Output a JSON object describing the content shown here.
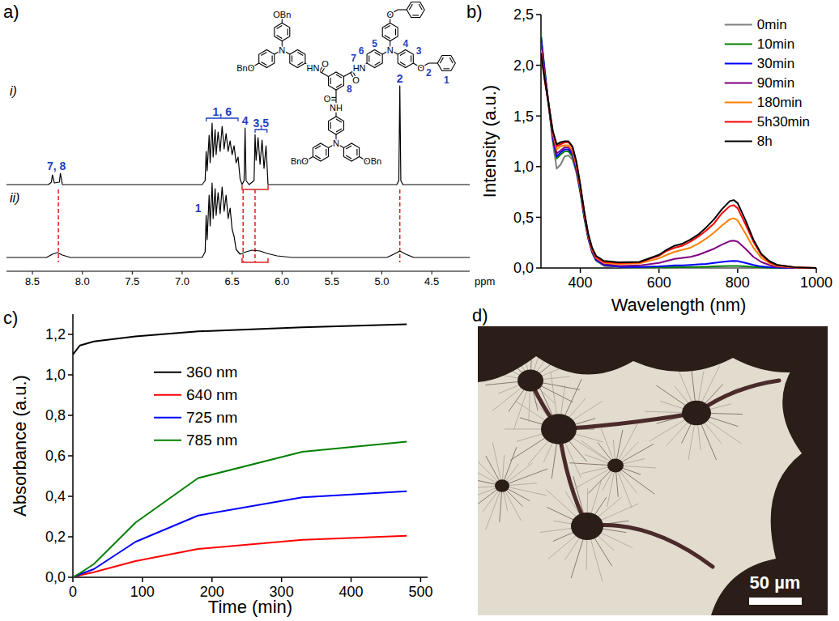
{
  "chart_data": [
    {
      "panel": "a)",
      "type": "spectrum",
      "x_label": "ppm",
      "xlim": [
        8.76,
        4.12
      ],
      "xticks": [
        8.5,
        {
          "value": 8,
          "label": "8.0"
        },
        7.5,
        {
          "value": 7,
          "label": "7.0"
        },
        6.5,
        {
          "value": 6,
          "label": "6.0"
        },
        5.5,
        {
          "value": 5,
          "label": "5.0"
        },
        4.5
      ],
      "ylim": [
        0,
        130
      ],
      "tick_labels": "x",
      "series": [
        {
          "name": "i)",
          "color": "#000000",
          "x": [
            8.76,
            8.34,
            8.31,
            8.3,
            8.28,
            8.23,
            8.22,
            8.2,
            6.8,
            6.77,
            6.76,
            6.75,
            6.73,
            6.72,
            6.7,
            6.69,
            6.67,
            6.66,
            6.64,
            6.62,
            6.6,
            6.58,
            6.56,
            6.54,
            6.52,
            6.5,
            6.48,
            6.46,
            6.44,
            6.42,
            6.4,
            6.38,
            6.37,
            6.36,
            6.33,
            6.28,
            6.27,
            6.26,
            6.24,
            6.22,
            6.2,
            6.18,
            6.16,
            6.14,
            4.85,
            4.83,
            4.82,
            4.81,
            4.79,
            4.12
          ],
          "values": [
            0,
            0,
            3,
            12,
            2,
            3,
            14,
            0,
            0,
            5,
            41,
            17,
            61,
            27,
            76,
            34,
            68,
            37,
            65,
            41,
            72,
            44,
            63,
            41,
            54,
            37,
            48,
            27,
            34,
            7,
            0,
            5,
            70,
            5,
            0,
            5,
            62,
            30,
            58,
            25,
            55,
            20,
            48,
            0,
            0,
            5,
            122,
            5,
            0,
            0
          ],
          "peak_labels": [
            {
              "text": "7, 8",
              "x": 8.26
            },
            {
              "text": "1, 6",
              "span": [
                6.76,
                6.44
              ]
            },
            {
              "text": "4",
              "x": 6.37
            },
            {
              "text": "3,5",
              "span": [
                6.27,
                6.15
              ]
            },
            {
              "text": "2",
              "x": 4.82
            }
          ]
        },
        {
          "name": "ii)",
          "color": "#000000",
          "x": [
            8.76,
            8.36,
            8.3,
            8.25,
            8.2,
            8.12,
            6.8,
            6.77,
            6.76,
            6.75,
            6.73,
            6.72,
            6.7,
            6.69,
            6.67,
            6.66,
            6.64,
            6.62,
            6.6,
            6.58,
            6.56,
            6.54,
            6.52,
            6.5,
            6.48,
            6.46,
            6.42,
            6.36,
            6.3,
            6.22,
            6.15,
            6.05,
            5.9,
            4.95,
            4.88,
            4.82,
            4.76,
            4.68,
            4.12
          ],
          "values": [
            0,
            0,
            4,
            6,
            3,
            0,
            0,
            7,
            52,
            22,
            77,
            39,
            92,
            48,
            85,
            52,
            80,
            54,
            87,
            57,
            77,
            48,
            61,
            35,
            26,
            10,
            4,
            7,
            9,
            8,
            5,
            2,
            0,
            0,
            4,
            8,
            4,
            0,
            0
          ],
          "peak_labels": [
            {
              "text": "1",
              "x": 6.84
            }
          ]
        }
      ],
      "guide_lines": [
        8.24,
        6.39,
        6.27,
        4.82
      ],
      "bracket": [
        6.4,
        6.14
      ],
      "structure": {
        "arms": [
          {
            "carbonyl": "O",
            "amide": "HN",
            "amine": "N",
            "ends": [
              "OBn",
              "BnO"
            ]
          },
          {
            "carbonyl": "O",
            "amide": "HN",
            "amine": "N",
            "ends": [
              "O",
              "O"
            ]
          },
          {
            "carbonyl": "O",
            "amide": "NH",
            "amine": "N",
            "ends": [
              "BnO",
              "OBn"
            ]
          }
        ],
        "numbers": [
          "1",
          "2",
          "3",
          "4",
          "5",
          "6",
          "7",
          "8"
        ]
      }
    },
    {
      "panel": "b)",
      "type": "line",
      "x_label": "Wavelength (nm)",
      "y_label": "Intensity (a.u.)",
      "x": [
        300,
        310,
        320,
        330,
        340,
        350,
        360,
        370,
        380,
        390,
        400,
        410,
        420,
        430,
        440,
        460,
        500,
        550,
        600,
        620,
        640,
        660,
        680,
        700,
        720,
        740,
        760,
        780,
        790,
        800,
        820,
        840,
        860,
        880,
        900,
        950,
        1000
      ],
      "xlim": [
        300,
        1000
      ],
      "xticks": [
        400,
        600,
        800,
        1000
      ],
      "ylim": [
        0,
        2.5
      ],
      "yticks": [
        {
          "value": 0,
          "label": "0,0"
        },
        {
          "value": 0.5,
          "label": "0,5"
        },
        {
          "value": 1,
          "label": "1,0"
        },
        {
          "value": 1.5,
          "label": "1,5"
        },
        {
          "value": 2,
          "label": "2,0"
        },
        {
          "value": 2.5,
          "label": "2,5"
        }
      ],
      "legend": "upper-right",
      "series": [
        {
          "name": "0min",
          "color": "#808080",
          "values": [
            2.2,
            1.88,
            1.58,
            1.24,
            0.98,
            1.02,
            1.1,
            1.11,
            1.07,
            0.94,
            0.74,
            0.49,
            0.29,
            0.15,
            0.07,
            0.02,
            0.005,
            0,
            0,
            0,
            0,
            0,
            0,
            0,
            0,
            0,
            0,
            0,
            0,
            0,
            0,
            0,
            0,
            0,
            0,
            0,
            0
          ]
        },
        {
          "name": "10min",
          "color": "#008000",
          "values": [
            2.3,
            1.93,
            1.6,
            1.27,
            1.08,
            1.12,
            1.15,
            1.15,
            1.1,
            0.96,
            0.75,
            0.5,
            0.3,
            0.16,
            0.08,
            0.03,
            0.01,
            0.005,
            0.005,
            0.006,
            0.007,
            0.008,
            0.009,
            0.01,
            0.012,
            0.015,
            0.017,
            0.02,
            0.02,
            0.02,
            0.015,
            0.01,
            0.005,
            0.002,
            0.001,
            0,
            0
          ]
        },
        {
          "name": "30min",
          "color": "#0000ff",
          "values": [
            2.28,
            1.93,
            1.6,
            1.28,
            1.1,
            1.14,
            1.17,
            1.17,
            1.12,
            0.97,
            0.76,
            0.51,
            0.3,
            0.16,
            0.08,
            0.03,
            0.01,
            0.01,
            0.015,
            0.02,
            0.025,
            0.025,
            0.03,
            0.035,
            0.04,
            0.05,
            0.06,
            0.068,
            0.07,
            0.068,
            0.05,
            0.03,
            0.015,
            0.008,
            0.003,
            0,
            0
          ]
        },
        {
          "name": "90min",
          "color": "#800080",
          "values": [
            2.22,
            1.9,
            1.6,
            1.3,
            1.13,
            1.16,
            1.19,
            1.19,
            1.14,
            0.99,
            0.77,
            0.52,
            0.31,
            0.17,
            0.09,
            0.04,
            0.02,
            0.025,
            0.05,
            0.07,
            0.09,
            0.1,
            0.11,
            0.13,
            0.16,
            0.19,
            0.23,
            0.265,
            0.27,
            0.26,
            0.19,
            0.11,
            0.06,
            0.03,
            0.01,
            0,
            0
          ]
        },
        {
          "name": "180min",
          "color": "#ff8000",
          "values": [
            2.15,
            1.86,
            1.6,
            1.33,
            1.17,
            1.2,
            1.21,
            1.21,
            1.16,
            1.01,
            0.79,
            0.54,
            0.32,
            0.18,
            0.1,
            0.05,
            0.04,
            0.045,
            0.095,
            0.13,
            0.16,
            0.18,
            0.2,
            0.24,
            0.29,
            0.35,
            0.42,
            0.48,
            0.49,
            0.47,
            0.34,
            0.2,
            0.1,
            0.05,
            0.02,
            0.004,
            0
          ]
        },
        {
          "name": "5h30min",
          "color": "#ff0000",
          "values": [
            2.1,
            1.84,
            1.6,
            1.35,
            1.2,
            1.22,
            1.24,
            1.24,
            1.19,
            1.04,
            0.81,
            0.55,
            0.33,
            0.19,
            0.11,
            0.06,
            0.05,
            0.055,
            0.12,
            0.17,
            0.2,
            0.22,
            0.26,
            0.31,
            0.37,
            0.44,
            0.54,
            0.61,
            0.62,
            0.59,
            0.43,
            0.26,
            0.13,
            0.06,
            0.03,
            0.005,
            0
          ]
        },
        {
          "name": "8h",
          "color": "#000000",
          "values": [
            2.12,
            1.85,
            1.6,
            1.35,
            1.22,
            1.24,
            1.25,
            1.25,
            1.2,
            1.05,
            0.82,
            0.56,
            0.34,
            0.2,
            0.12,
            0.07,
            0.055,
            0.06,
            0.13,
            0.18,
            0.22,
            0.24,
            0.28,
            0.33,
            0.4,
            0.48,
            0.58,
            0.66,
            0.67,
            0.64,
            0.47,
            0.28,
            0.14,
            0.07,
            0.03,
            0.005,
            0
          ]
        }
      ]
    },
    {
      "panel": "c)",
      "type": "line",
      "x_label": "Time (min)",
      "y_label": "Absorbance (a.u.)",
      "x": [
        0,
        10,
        30,
        90,
        180,
        330,
        480
      ],
      "xlim": [
        0,
        510
      ],
      "xticks": [
        0,
        100,
        200,
        300,
        400,
        500
      ],
      "ylim": [
        0,
        1.3
      ],
      "yticks": [
        {
          "value": 0,
          "label": "0,0"
        },
        {
          "value": 0.2,
          "label": "0,2"
        },
        {
          "value": 0.4,
          "label": "0,4"
        },
        {
          "value": 0.6,
          "label": "0,6"
        },
        {
          "value": 0.8,
          "label": "0,8"
        },
        {
          "value": 1,
          "label": "1,0"
        },
        {
          "value": 1.2,
          "label": "1,2"
        }
      ],
      "legend": "upper-left",
      "series": [
        {
          "name": "360 nm",
          "color": "#000000",
          "values": [
            1.1,
            1.145,
            1.165,
            1.19,
            1.215,
            1.235,
            1.25
          ]
        },
        {
          "name": "640 nm",
          "color": "#ff0000",
          "values": [
            0,
            0.01,
            0.025,
            0.08,
            0.14,
            0.185,
            0.205
          ]
        },
        {
          "name": "725 nm",
          "color": "#0000ff",
          "values": [
            0,
            0.015,
            0.04,
            0.175,
            0.305,
            0.395,
            0.425
          ]
        },
        {
          "name": "785 nm",
          "color": "#008000",
          "values": [
            0,
            0.02,
            0.065,
            0.27,
            0.49,
            0.62,
            0.67
          ]
        }
      ]
    }
  ],
  "image": {
    "panel": "d)",
    "scale_bar": "50 µm"
  }
}
